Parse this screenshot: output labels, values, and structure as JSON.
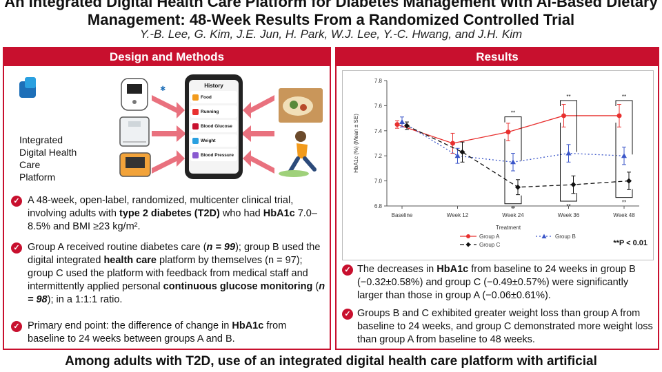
{
  "header": {
    "title_line1": "An Integrated Digital Health Care Platform for Diabetes Management With AI-Based Dietary",
    "title_line2": "Management: 48-Week Results From a Randomized Controlled Trial",
    "authors": "Y.-B. Lee, G. Kim, J.E. Jun, H. Park, W.J. Lee, Y.-C. Hwang, and J.H. Kim"
  },
  "left": {
    "heading": "Design and Methods",
    "platform_label": [
      "Integrated",
      "Digital Health Care",
      "Platform"
    ],
    "phone": {
      "title": "History",
      "items": [
        "Food",
        "Running",
        "Blood Glucose",
        "Weight",
        "Blood Pressure"
      ]
    },
    "bullets": [
      {
        "pre": "A 48-week, open-label, randomized, multicenter clinical trial, involving adults with ",
        "bold1": "type 2 diabetes (T2D)",
        "mid": " who had ",
        "bold2": "HbA1c",
        "post": " 7.0–8.5% and BMI ≥23 kg/m²."
      },
      {
        "text1": "Group A received routine diabetes care (",
        "n1": "n = 99",
        "text2": "); group B used the digital integrated ",
        "bold1": "health care",
        "text3": " platform by themselves (n = 97); group C used the platform with feedback from medical staff and intermittently applied personal ",
        "bold2": "continuous glucose monitoring",
        "text4": " (",
        "n2": "n = 98",
        "text5": "); in a 1:1:1 ratio."
      },
      {
        "text1": "Primary end point: the difference of change in ",
        "bold1": "HbA1c",
        "text2": " from baseline to 24 weeks between groups A and B."
      }
    ]
  },
  "right": {
    "heading": "Results",
    "significance_note": "**P < 0.01",
    "bullets": [
      {
        "text1": "The decreases in ",
        "bold1": "HbA1c",
        "text2": " from baseline to 24 weeks in group B (−0.32±0.58%) and group C (−0.49±0.57%) were significantly larger than those in group A (−0.06±0.61%)."
      },
      {
        "text": "Groups B and C exhibited greater weight loss than group A from baseline to 24 weeks, and group C demonstrated more weight loss than group A from baseline to 48 weeks."
      }
    ]
  },
  "chart_data": {
    "type": "line",
    "ylabel": "HbA1c (%) (Mean ± SE)",
    "xlabel": "",
    "categories": [
      "Baseline",
      "Week 12",
      "Week 24",
      "Week 36",
      "Week 48"
    ],
    "ylim": [
      6.8,
      7.8
    ],
    "yticks": [
      "6.8",
      "7.0",
      "7.2",
      "7.4",
      "7.6",
      "7.8"
    ],
    "legend_title": "Treatment",
    "series": [
      {
        "name": "Group A",
        "values": [
          7.45,
          7.3,
          7.39,
          7.52,
          7.52
        ],
        "errors": [
          0.03,
          0.08,
          0.07,
          0.09,
          0.09
        ],
        "color": "#e8302f",
        "marker": "circle",
        "dash": "solid"
      },
      {
        "name": "Group B",
        "values": [
          7.47,
          7.2,
          7.15,
          7.22,
          7.2
        ],
        "errors": [
          0.04,
          0.06,
          0.07,
          0.07,
          0.07
        ],
        "color": "#3a55c8",
        "marker": "triangle",
        "dash": "dotted"
      },
      {
        "name": "Group C",
        "values": [
          7.44,
          7.23,
          6.95,
          6.97,
          7.0
        ],
        "errors": [
          0.03,
          0.08,
          0.06,
          0.07,
          0.07
        ],
        "color": "#111111",
        "marker": "diamond",
        "dash": "dashed"
      }
    ],
    "significance": [
      "**",
      "**",
      "**",
      "**",
      "**",
      "**"
    ]
  },
  "footer": {
    "conclusion": "Among adults with T2D, use of an integrated digital health care platform with artificial"
  }
}
